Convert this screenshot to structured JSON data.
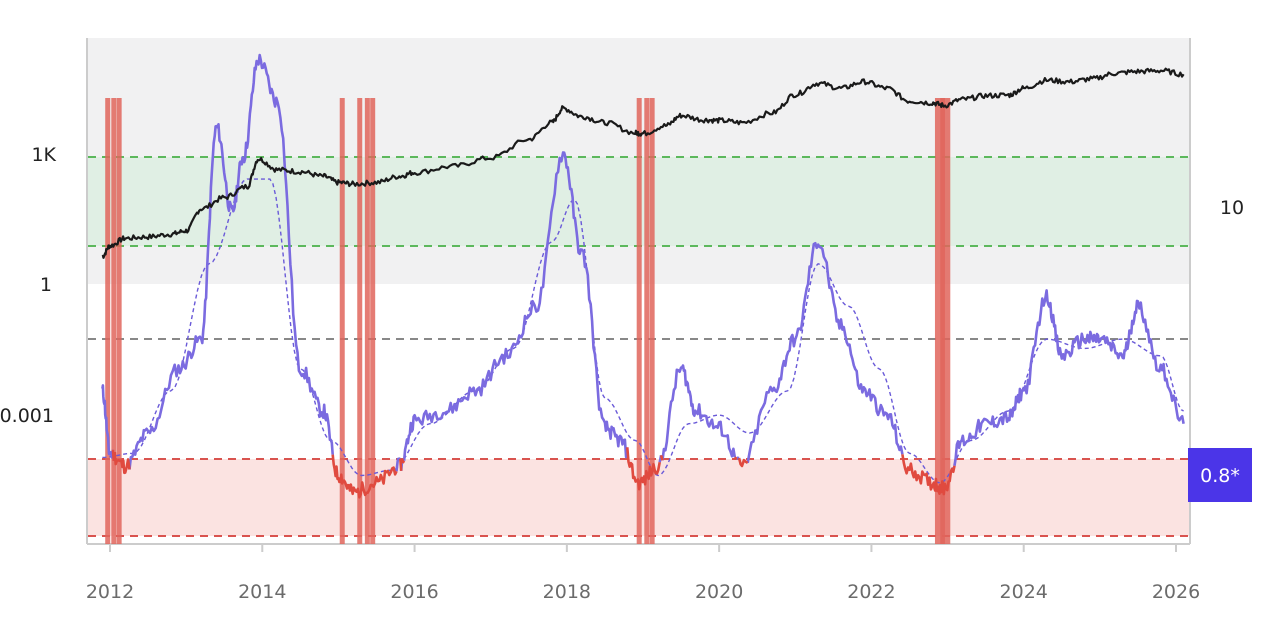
{
  "chart_data": {
    "type": "line",
    "title": "",
    "xlabel": "",
    "ylabel": "",
    "x_ticks": [
      "2012",
      "2014",
      "2016",
      "2018",
      "2020",
      "2022",
      "2024",
      "2026"
    ],
    "xlim": [
      2011.9,
      2026.2
    ],
    "left_axis": {
      "scale": "log",
      "tick_labels": [
        "1K",
        "1",
        "0.001"
      ]
    },
    "right_axis": {
      "tick_labels": [
        "10"
      ]
    },
    "current_value_badge": "0.8*",
    "colors": {
      "price": "#1a1a1a",
      "indicator": "#7b6be0",
      "indicator_low": "#e04a3f",
      "moving_average": "#6a5ad8",
      "upper_zone": "#dcefe0",
      "lower_zone": "#fbe3e1",
      "upper_band_line": "#5cb85c",
      "lower_band_line": "#d9534f",
      "mid_line": "#888888",
      "badge": "#4b35e8",
      "signal_bar": "#e0655c"
    },
    "price_series": {
      "name": "",
      "x": [
        2011.9,
        2012.0,
        2012.2,
        2012.5,
        2012.8,
        2013.0,
        2013.2,
        2013.5,
        2013.8,
        2013.95,
        2014.2,
        2014.5,
        2014.8,
        2015.0,
        2015.2,
        2015.5,
        2015.8,
        2016.0,
        2016.5,
        2017.0,
        2017.5,
        2017.8,
        2017.95,
        2018.2,
        2018.5,
        2018.9,
        2019.0,
        2019.3,
        2019.5,
        2019.8,
        2020.0,
        2020.3,
        2020.7,
        2021.0,
        2021.3,
        2021.6,
        2021.9,
        2022.2,
        2022.5,
        2022.8,
        2022.95,
        2023.2,
        2023.5,
        2023.8,
        2024.0,
        2024.3,
        2024.6,
        2024.9,
        2025.2,
        2025.5,
        2025.8,
        2026.1
      ],
      "values": [
        4.5,
        8,
        12,
        13,
        15,
        18,
        60,
        110,
        200,
        900,
        500,
        450,
        350,
        250,
        230,
        250,
        350,
        430,
        600,
        950,
        2600,
        6500,
        14000,
        9000,
        6500,
        3700,
        3600,
        5500,
        9500,
        7500,
        7300,
        6500,
        11000,
        30000,
        55000,
        42000,
        60000,
        42000,
        21000,
        19000,
        16500,
        23000,
        28000,
        29000,
        42000,
        65000,
        60000,
        70000,
        95000,
        105000,
        110000,
        90000
      ]
    },
    "indicator_series": {
      "name": "",
      "x": [
        2011.9,
        2012.0,
        2012.2,
        2012.5,
        2012.9,
        2013.2,
        2013.4,
        2013.6,
        2013.75,
        2013.95,
        2014.2,
        2014.5,
        2014.8,
        2015.0,
        2015.2,
        2015.5,
        2015.8,
        2016.0,
        2016.4,
        2016.8,
        2017.2,
        2017.6,
        2017.95,
        2018.2,
        2018.5,
        2018.7,
        2018.95,
        2019.2,
        2019.5,
        2019.7,
        2020.0,
        2020.3,
        2020.7,
        2021.0,
        2021.3,
        2021.6,
        2021.9,
        2022.2,
        2022.5,
        2022.8,
        2022.95,
        2023.2,
        2023.5,
        2023.8,
        2024.0,
        2024.3,
        2024.5,
        2024.8,
        2025.0,
        2025.3,
        2025.5,
        2025.8,
        2026.1
      ],
      "values": [
        0.003,
        0.0001,
        5e-05,
        0.0003,
        0.01,
        0.05,
        5000,
        50,
        1000,
        200000,
        20000,
        0.01,
        0.001,
        3e-05,
        1.2e-05,
        2e-05,
        5e-05,
        0.0006,
        0.001,
        0.003,
        0.02,
        0.3,
        1200,
        5,
        0.0004,
        0.0002,
        2e-05,
        5e-05,
        0.01,
        0.001,
        0.0004,
        5e-05,
        0.003,
        0.05,
        10,
        0.1,
        0.003,
        0.0008,
        4e-05,
        2e-05,
        1.5e-05,
        0.0002,
        0.0005,
        0.0007,
        0.003,
        0.5,
        0.02,
        0.05,
        0.05,
        0.02,
        0.3,
        0.01,
        0.0005
      ]
    },
    "moving_average_series": {
      "name": "",
      "x": [
        2011.9,
        2012.3,
        2012.8,
        2013.3,
        2013.8,
        2014.1,
        2014.5,
        2014.9,
        2015.3,
        2015.7,
        2016.2,
        2016.8,
        2017.3,
        2017.8,
        2018.1,
        2018.5,
        2018.9,
        2019.2,
        2019.6,
        2020.0,
        2020.4,
        2020.9,
        2021.3,
        2021.7,
        2022.1,
        2022.5,
        2022.9,
        2023.3,
        2023.8,
        2024.3,
        2024.8,
        2025.3,
        2025.8,
        2026.1
      ],
      "values": [
        8e-05,
        0.0001,
        0.003,
        3,
        300,
        300,
        0.01,
        0.0002,
        3e-05,
        4e-05,
        0.0005,
        0.003,
        0.03,
        10,
        100,
        0.002,
        0.0002,
        3e-05,
        0.0005,
        0.0008,
        0.0003,
        0.003,
        3,
        0.3,
        0.01,
        0.0001,
        2e-05,
        0.0002,
        0.001,
        0.05,
        0.03,
        0.05,
        0.02,
        0.001
      ]
    },
    "signal_bars_x": [
      2011.97,
      2012.05,
      2012.12,
      2015.05,
      2015.28,
      2015.38,
      2015.45,
      2018.95,
      2019.05,
      2019.12,
      2022.9,
      2022.97
    ]
  }
}
